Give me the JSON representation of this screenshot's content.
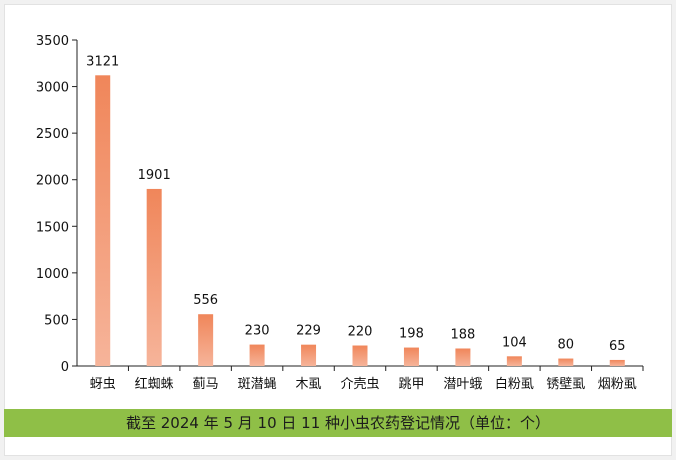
{
  "chart_data": {
    "type": "bar",
    "title": "",
    "xlabel": "",
    "ylabel": "",
    "ylim": [
      0,
      3500
    ],
    "yticks": [
      0,
      500,
      1000,
      1500,
      2000,
      2500,
      3000,
      3500
    ],
    "grid": false,
    "categories": [
      "蚜虫",
      "红蜘蛛",
      "蓟马",
      "斑潜蝇",
      "木虱",
      "介壳虫",
      "跳甲",
      "潜叶蛾",
      "白粉虱",
      "锈壁虱",
      "烟粉虱"
    ],
    "values": [
      3121,
      1901,
      556,
      230,
      229,
      220,
      198,
      188,
      104,
      80,
      65
    ],
    "bar_color_top": "#f0865a",
    "bar_color_bottom": "#f6b49a"
  },
  "caption": "截至 2024 年 5 月 10 日 11 种小虫农药登记情况（单位：个）",
  "colors": {
    "footer_bg": "#8fbf47"
  }
}
